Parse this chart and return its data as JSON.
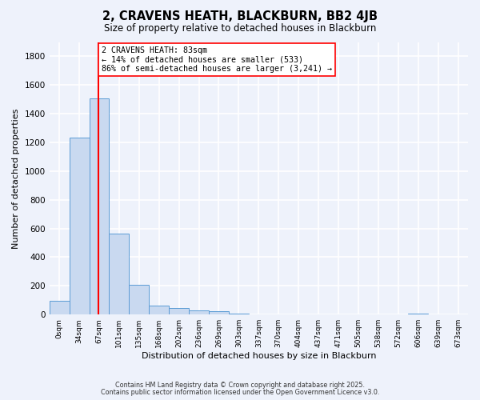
{
  "title": "2, CRAVENS HEATH, BLACKBURN, BB2 4JB",
  "subtitle": "Size of property relative to detached houses in Blackburn",
  "xlabel": "Distribution of detached houses by size in Blackburn",
  "ylabel": "Number of detached properties",
  "bar_values": [
    95,
    1235,
    1505,
    565,
    210,
    65,
    48,
    30,
    22,
    5,
    0,
    0,
    0,
    0,
    0,
    0,
    0,
    0,
    5,
    0,
    0
  ],
  "x_tick_labels": [
    "0sqm",
    "34sqm",
    "67sqm",
    "101sqm",
    "135sqm",
    "168sqm",
    "202sqm",
    "236sqm",
    "269sqm",
    "303sqm",
    "337sqm",
    "370sqm",
    "404sqm",
    "437sqm",
    "471sqm",
    "505sqm",
    "538sqm",
    "572sqm",
    "606sqm",
    "639sqm",
    "673sqm"
  ],
  "bar_color": "#c9d9f0",
  "bar_edge_color": "#5b9bd5",
  "red_line_x": 2.47,
  "ylim": [
    0,
    1900
  ],
  "yticks": [
    0,
    200,
    400,
    600,
    800,
    1000,
    1200,
    1400,
    1600,
    1800
  ],
  "annotation_box_text": "2 CRAVENS HEATH: 83sqm\n← 14% of detached houses are smaller (533)\n86% of semi-detached houses are larger (3,241) →",
  "footer_line1": "Contains HM Land Registry data © Crown copyright and database right 2025.",
  "footer_line2": "Contains public sector information licensed under the Open Government Licence v3.0.",
  "background_color": "#eef2fb",
  "plot_bg_color": "#eef2fb",
  "grid_color": "#ffffff"
}
